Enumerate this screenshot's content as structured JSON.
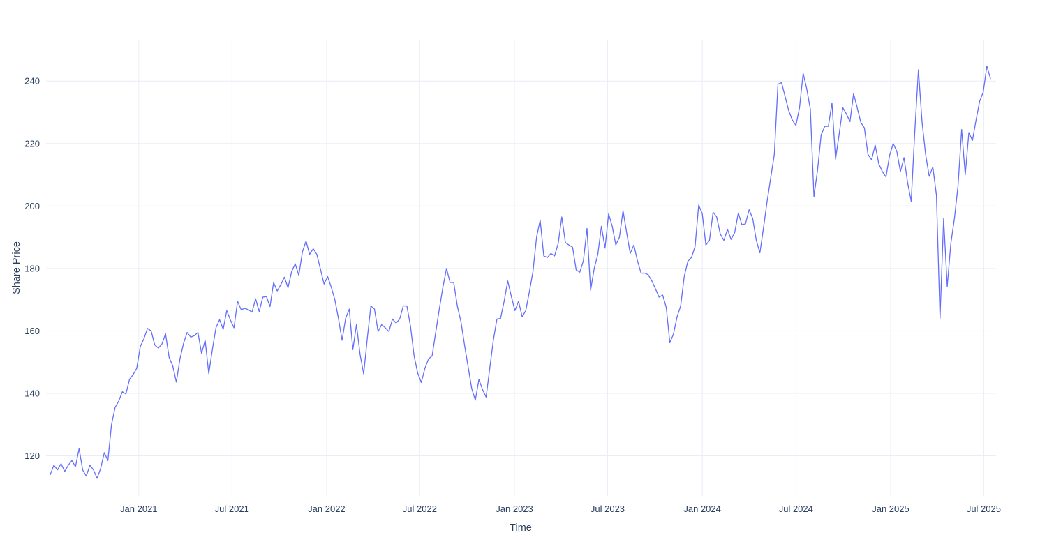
{
  "axes": {
    "x_title": "Time",
    "y_title": "Share Price",
    "y_ticks": [
      120,
      140,
      160,
      180,
      200,
      220,
      240
    ],
    "x_ticks": [
      {
        "date": "2021-01-01",
        "label": "Jan 2021"
      },
      {
        "date": "2021-07-01",
        "label": "Jul 2021"
      },
      {
        "date": "2022-01-01",
        "label": "Jan 2022"
      },
      {
        "date": "2022-07-01",
        "label": "Jul 2022"
      },
      {
        "date": "2023-01-01",
        "label": "Jan 2023"
      },
      {
        "date": "2023-07-01",
        "label": "Jul 2023"
      },
      {
        "date": "2024-01-01",
        "label": "Jan 2024"
      },
      {
        "date": "2024-07-01",
        "label": "Jul 2024"
      },
      {
        "date": "2025-01-01",
        "label": "Jan 2025"
      },
      {
        "date": "2025-07-01",
        "label": "Jul 2025"
      }
    ]
  },
  "colors": {
    "line": "#636efa",
    "grid": "#e9eef6",
    "text": "#2a3f5f",
    "background": "#ffffff"
  },
  "chart_data": {
    "type": "line",
    "title": "",
    "xlabel": "Time",
    "ylabel": "Share Price",
    "legend": false,
    "grid": true,
    "ylim": [
      107,
      253
    ],
    "x_range": [
      "2020-07-13",
      "2025-07-14"
    ],
    "series": [
      {
        "name": "Share Price",
        "start_date": "2020-07-13",
        "end_date": "2025-07-14",
        "interval_days": 7,
        "prices": [
          114,
          117,
          115.5,
          117.5,
          115,
          117,
          118.5,
          116.5,
          122.3,
          115.5,
          113.5,
          117,
          115.5,
          112.8,
          116,
          121,
          118.5,
          130,
          135.5,
          137.5,
          140.5,
          139.8,
          144.5,
          146,
          148,
          155,
          157.5,
          160.8,
          160,
          155.5,
          154.5,
          155.8,
          159.1,
          151.5,
          148.8,
          143.6,
          151,
          156,
          159.5,
          158,
          158.5,
          159.5,
          152.8,
          157,
          146.3,
          154,
          161,
          163.6,
          160.5,
          166.5,
          163.5,
          161,
          169.5,
          166.8,
          167.2,
          166.8,
          166,
          170.3,
          166.2,
          170.8,
          171,
          167.8,
          175.5,
          172.8,
          174.8,
          177.2,
          173.8,
          179,
          181.5,
          177.8,
          185.3,
          188.8,
          184.5,
          186.3,
          184.5,
          179.8,
          175,
          177.4,
          174,
          170,
          164,
          157,
          164,
          167,
          154,
          162,
          152.5,
          146.2,
          157.5,
          168,
          167,
          159.8,
          162,
          161,
          159.8,
          163.8,
          162.5,
          163.8,
          168,
          168,
          161.5,
          152,
          146.5,
          143.5,
          148,
          151,
          152,
          159.5,
          167,
          174,
          180,
          175.5,
          175.5,
          168,
          163,
          155.5,
          148.5,
          141.5,
          137.8,
          144.5,
          141.2,
          138.8,
          148,
          157,
          163.8,
          164,
          169.5,
          176,
          171,
          166.5,
          169.5,
          164.5,
          166.5,
          172.5,
          179,
          190,
          195.5,
          184,
          183.5,
          184.8,
          184,
          188,
          196.5,
          188.3,
          187.5,
          186.8,
          179.5,
          178.8,
          182.5,
          192.8,
          173,
          180,
          184.5,
          193.5,
          186.5,
          197.5,
          193.5,
          187.5,
          190,
          198.5,
          191.5,
          184.8,
          187.5,
          182.5,
          178.5,
          178.5,
          178,
          176,
          173.5,
          170.8,
          171.5,
          167.5,
          156.2,
          159,
          164.5,
          168,
          177.5,
          182.3,
          183.5,
          187,
          200.3,
          197.5,
          187.5,
          189,
          198,
          196.5,
          191,
          189,
          192.5,
          189.3,
          191.5,
          197.8,
          194,
          194.3,
          198.8,
          196,
          189,
          185,
          193,
          201.5,
          209,
          216.5,
          239,
          239.5,
          235,
          230.5,
          227.5,
          225.8,
          231.5,
          242.5,
          237.5,
          231,
          203,
          211.5,
          222.8,
          225.5,
          225.5,
          233,
          215,
          223,
          231.5,
          229.5,
          227,
          236,
          231.5,
          226.8,
          225,
          216.5,
          214.8,
          219.5,
          213.5,
          211,
          209.3,
          216.2,
          220,
          217.5,
          211,
          215.5,
          207.5,
          201.5,
          224,
          243.6,
          227,
          216.5,
          209.5,
          212.5,
          203.5,
          164,
          196,
          174.2,
          188,
          196,
          206.5,
          224.5,
          210,
          223.5,
          221,
          227.5,
          233.5,
          236.5,
          244.8,
          240.8
        ]
      }
    ]
  }
}
